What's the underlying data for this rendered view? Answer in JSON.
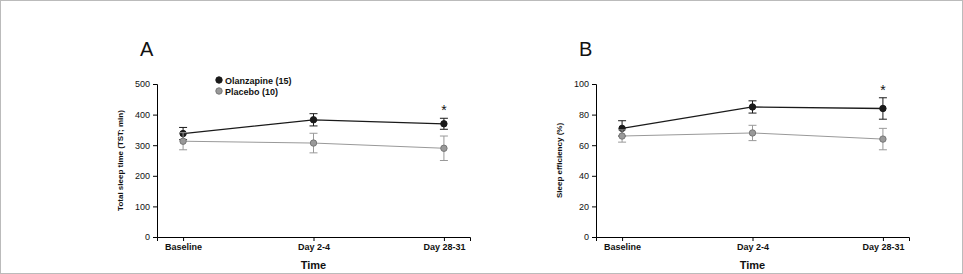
{
  "chart_data": [
    {
      "type": "line",
      "title": "A",
      "x_label": "Time",
      "y_label": "Total sleep time (TST; min)",
      "categories": [
        "Baseline",
        "Day 2-4",
        "Day 28-31"
      ],
      "series": [
        {
          "name": "Olanzapine (15)",
          "color": "#1a1a1a",
          "marker": "circle",
          "values": [
            338,
            383,
            370
          ],
          "errors": [
            20,
            20,
            18
          ]
        },
        {
          "name": "Placebo (10)",
          "color": "#999999",
          "marker": "circle",
          "values": [
            313,
            307,
            290
          ],
          "errors": [
            28,
            32,
            40
          ]
        }
      ],
      "ylim": [
        0,
        500
      ],
      "yticks": [
        0,
        100,
        200,
        300,
        400,
        500
      ],
      "legend": "upper left",
      "annotations": [
        {
          "text": "*",
          "x": "Day 28-31"
        }
      ]
    },
    {
      "type": "line",
      "title": "B",
      "x_label": "Time",
      "y_label": "Sleep efficiency (%)",
      "categories": [
        "Baseline",
        "Day 2-4",
        "Day 28-31"
      ],
      "series": [
        {
          "color": "#1a1a1a",
          "marker": "circle",
          "values": [
            71,
            85,
            84
          ],
          "errors": [
            5,
            4,
            7
          ]
        },
        {
          "color": "#999999",
          "marker": "circle",
          "values": [
            66,
            68,
            64
          ],
          "errors": [
            4,
            5,
            7
          ]
        }
      ],
      "ylim": [
        0,
        100
      ],
      "yticks": [
        0,
        20,
        40,
        60,
        80,
        100
      ],
      "annotations": [
        {
          "text": "*",
          "x": "Day 28-31"
        }
      ]
    }
  ]
}
